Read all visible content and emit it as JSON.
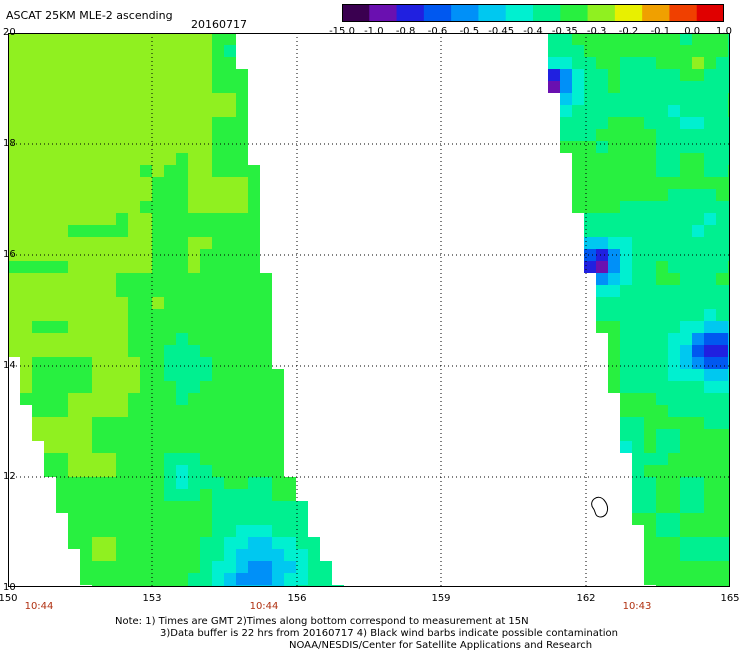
{
  "header": {
    "title": "ASCAT 25KM MLE-2 ascending",
    "date": "20160717"
  },
  "colorbar": {
    "labels": [
      "-15.0",
      "-1.0",
      "-0.8",
      "-0.6",
      "-0.5",
      "-0.45",
      "-0.4",
      "-0.35",
      "-0.3",
      "-0.2",
      "-0.1",
      "0.0",
      "1.0"
    ],
    "colors": [
      "#3a0050",
      "#6a10b0",
      "#2020e0",
      "#0058f0",
      "#0090f8",
      "#00c8f0",
      "#00f0d0",
      "#00f090",
      "#28f040",
      "#90f020",
      "#e8f000",
      "#f0a000",
      "#f04000",
      "#e00000"
    ]
  },
  "axes": {
    "lat_labels": [
      "20",
      "18",
      "16",
      "14",
      "12",
      "10"
    ],
    "lon_labels": [
      "150",
      "153",
      "156",
      "159",
      "162",
      "165"
    ],
    "time_labels": [
      "10:44",
      "10:44",
      "10:43"
    ]
  },
  "notes": {
    "line1": "Note: 1) Times are GMT 2)Times along bottom correspond to measurement at 15N",
    "line2": "3)Data buffer is 22 hrs from 20160717 4) Black wind barbs indicate possible contamination",
    "line3": "NOAA/NESDIS/Center for Satellite Applications and Research"
  }
}
